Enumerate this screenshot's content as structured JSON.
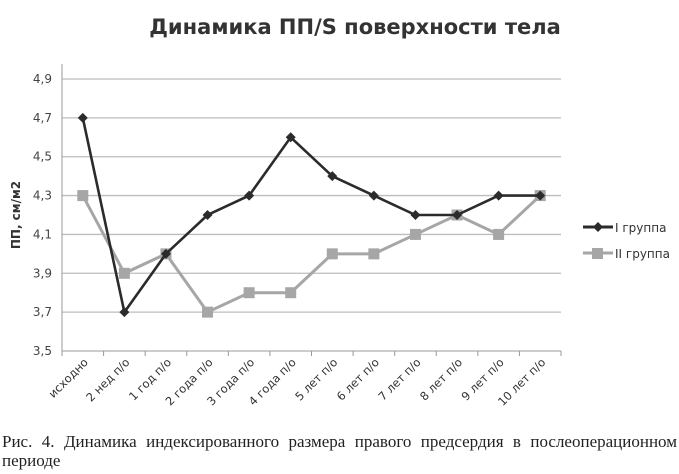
{
  "chart_data": {
    "type": "line",
    "title": "Динамика ПП/S поверхности тела",
    "xlabel": "",
    "ylabel": "ПП, см/м2",
    "ylim": [
      3.5,
      4.9
    ],
    "yticks": [
      "3,5",
      "3,7",
      "3,9",
      "4,1",
      "4,3",
      "4,5",
      "4,7",
      "4,9"
    ],
    "ytick_values": [
      3.5,
      3.7,
      3.9,
      4.1,
      4.3,
      4.5,
      4.7,
      4.9
    ],
    "grid": true,
    "legend_position": "right",
    "categories": [
      "исходно",
      "2 нед п/о",
      "1 год п/о",
      "2 года п/о",
      "3 года п/о",
      "4 года п/о",
      "5 лет п/о",
      "6 лет п/о",
      "7 лет п/о",
      "8 лет п/о",
      "9 лет п/о",
      "10 лет п/о"
    ],
    "series": [
      {
        "name": "I группа",
        "color": "#2b2b2b",
        "marker": "diamond",
        "values": [
          4.7,
          3.7,
          4.0,
          4.2,
          4.3,
          4.6,
          4.4,
          4.3,
          4.2,
          4.2,
          4.3,
          4.3
        ]
      },
      {
        "name": "II группа",
        "color": "#a6a6a6",
        "marker": "square",
        "values": [
          4.3,
          3.9,
          4.0,
          3.7,
          3.8,
          3.8,
          4.0,
          4.0,
          4.1,
          4.2,
          4.1,
          4.3
        ]
      }
    ]
  },
  "caption": "Рис. 4. Динамика индексированного размера правого предсердия в послеоперационном периоде"
}
